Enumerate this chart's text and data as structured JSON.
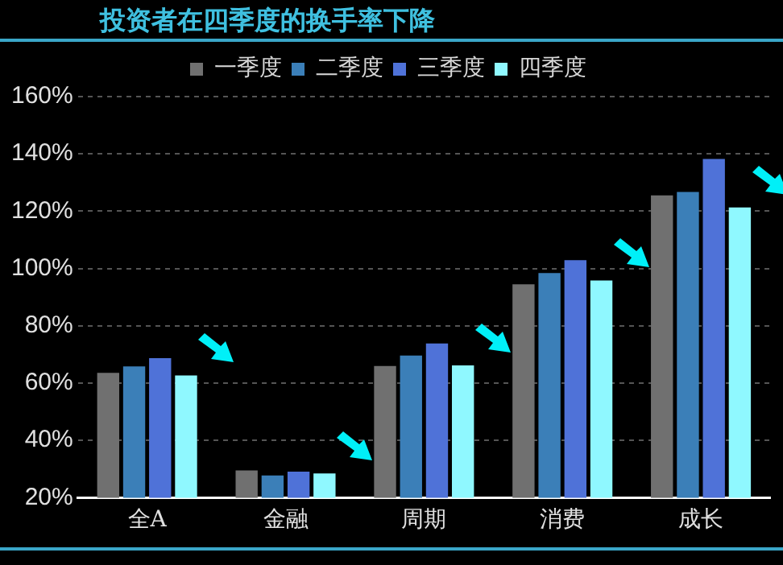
{
  "chart_data": {
    "type": "bar",
    "title": "投资者在四季度的换手率下降",
    "categories": [
      "全A",
      "金融",
      "周期",
      "消费",
      "成长"
    ],
    "series": [
      {
        "name": "一季度",
        "color": "#707070",
        "values": [
          63.6,
          29.5,
          66,
          94.5,
          125.5
        ]
      },
      {
        "name": "二季度",
        "color": "#3b7fb8",
        "values": [
          65.8,
          27.8,
          69.6,
          98.4,
          126.7
        ]
      },
      {
        "name": "三季度",
        "color": "#4f72d8",
        "values": [
          68.7,
          29.1,
          73.8,
          102.9,
          138.2
        ]
      },
      {
        "name": "四季度",
        "color": "#8ff8ff",
        "values": [
          62.7,
          28.5,
          66.2,
          95.8,
          121.3
        ]
      }
    ],
    "ylim": [
      20,
      160
    ],
    "yticks": [
      {
        "value": 20,
        "label": "20%"
      },
      {
        "value": 40,
        "label": "40%"
      },
      {
        "value": 60,
        "label": "60%"
      },
      {
        "value": 80,
        "label": "80%"
      },
      {
        "value": 100,
        "label": "100%"
      },
      {
        "value": 120,
        "label": "120%"
      },
      {
        "value": 140,
        "label": "140%"
      },
      {
        "value": 160,
        "label": "160%"
      }
    ],
    "grid": "y",
    "legend": "top"
  }
}
